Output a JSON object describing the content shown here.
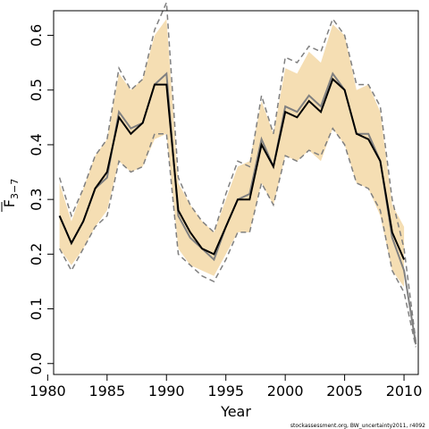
{
  "chart_data": {
    "type": "line",
    "xlabel": "Year",
    "ylabel_main": "F",
    "ylabel_sub": "3−7",
    "footnote": "stockassessment.org, BW_uncertainty2011, r4092",
    "xlim": [
      1980.5,
      2011.2
    ],
    "ylim": [
      -0.02,
      0.645
    ],
    "x_ticks": [
      1980,
      1985,
      1990,
      1995,
      2000,
      2005,
      2010
    ],
    "y_ticks": [
      0.0,
      0.1,
      0.2,
      0.3,
      0.4,
      0.5,
      0.6
    ],
    "y_tick_labels": [
      "0.0",
      "0.1",
      "0.2",
      "0.3",
      "0.4",
      "0.5",
      "0.6"
    ],
    "years": [
      1981,
      1982,
      1983,
      1984,
      1985,
      1986,
      1987,
      1988,
      1989,
      1990,
      1991,
      1992,
      1993,
      1994,
      1995,
      1996,
      1997,
      1998,
      1999,
      2000,
      2001,
      2002,
      2003,
      2004,
      2005,
      2006,
      2007,
      2008,
      2009,
      2010
    ],
    "series": [
      {
        "role": "band",
        "color": "#f5deb3",
        "lower": [
          0.21,
          0.18,
          0.21,
          0.25,
          0.28,
          0.37,
          0.35,
          0.36,
          0.41,
          0.42,
          0.21,
          0.18,
          0.17,
          0.16,
          0.2,
          0.24,
          0.24,
          0.33,
          0.29,
          0.38,
          0.37,
          0.39,
          0.37,
          0.43,
          0.4,
          0.33,
          0.32,
          0.27,
          0.17,
          0.14
        ],
        "upper": [
          0.33,
          0.26,
          0.32,
          0.38,
          0.41,
          0.53,
          0.5,
          0.52,
          0.6,
          0.63,
          0.33,
          0.29,
          0.26,
          0.24,
          0.3,
          0.36,
          0.37,
          0.48,
          0.42,
          0.54,
          0.53,
          0.57,
          0.55,
          0.62,
          0.6,
          0.5,
          0.51,
          0.46,
          0.29,
          0.25
        ]
      },
      {
        "role": "previous_ci",
        "color": "#808080",
        "style": "dashed",
        "x_lower": [
          1981,
          1982,
          1983,
          1984,
          1985,
          1986,
          1987,
          1988,
          1989,
          1990,
          1991,
          1992,
          1993,
          1994,
          1995,
          1996,
          1997,
          1998,
          1999,
          2000,
          2001,
          2002,
          2003,
          2004,
          2005,
          2006,
          2007,
          2008,
          2009,
          2010,
          2011
        ],
        "lower": [
          0.21,
          0.17,
          0.21,
          0.25,
          0.27,
          0.37,
          0.35,
          0.36,
          0.42,
          0.42,
          0.2,
          0.18,
          0.16,
          0.15,
          0.19,
          0.24,
          0.24,
          0.33,
          0.29,
          0.38,
          0.37,
          0.39,
          0.38,
          0.43,
          0.4,
          0.33,
          0.32,
          0.28,
          0.17,
          0.13,
          0.03
        ],
        "x_upper": [
          1981,
          1982,
          1983,
          1984,
          1985,
          1986,
          1987,
          1988,
          1989,
          1990,
          1991,
          1992,
          1993,
          1994,
          1995,
          1996,
          1997,
          1998,
          1999,
          2000,
          2001,
          2002,
          2003,
          2004,
          2005,
          2006,
          2007,
          2008,
          2009,
          2010,
          2011
        ],
        "upper": [
          0.34,
          0.27,
          0.32,
          0.38,
          0.41,
          0.54,
          0.5,
          0.52,
          0.61,
          0.66,
          0.34,
          0.29,
          0.26,
          0.24,
          0.31,
          0.37,
          0.36,
          0.49,
          0.42,
          0.56,
          0.55,
          0.58,
          0.57,
          0.63,
          0.6,
          0.51,
          0.51,
          0.47,
          0.3,
          0.21,
          0.04
        ]
      },
      {
        "role": "previous_estimate",
        "color": "#808080",
        "x": [
          1981,
          1982,
          1983,
          1984,
          1985,
          1986,
          1987,
          1988,
          1989,
          1990,
          1991,
          1992,
          1993,
          1994,
          1995,
          1996,
          1997,
          1998,
          1999,
          2000,
          2001,
          2002,
          2003,
          2004,
          2005,
          2006,
          2007,
          2008,
          2009,
          2010,
          2011
        ],
        "values": [
          0.27,
          0.22,
          0.26,
          0.32,
          0.34,
          0.46,
          0.43,
          0.44,
          0.51,
          0.53,
          0.27,
          0.23,
          0.21,
          0.19,
          0.25,
          0.3,
          0.31,
          0.41,
          0.36,
          0.47,
          0.46,
          0.49,
          0.47,
          0.53,
          0.5,
          0.42,
          0.42,
          0.37,
          0.23,
          0.17,
          0.035
        ]
      },
      {
        "role": "estimate",
        "color": "#000000",
        "values": [
          0.27,
          0.22,
          0.26,
          0.32,
          0.35,
          0.45,
          0.42,
          0.44,
          0.51,
          0.51,
          0.28,
          0.24,
          0.21,
          0.2,
          0.25,
          0.3,
          0.3,
          0.4,
          0.36,
          0.46,
          0.45,
          0.48,
          0.46,
          0.52,
          0.5,
          0.42,
          0.41,
          0.37,
          0.24,
          0.19
        ]
      }
    ]
  }
}
